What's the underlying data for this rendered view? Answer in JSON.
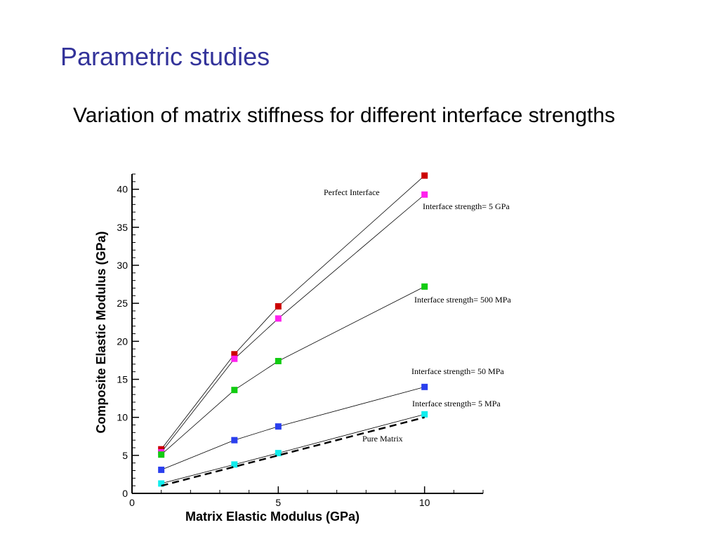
{
  "slide": {
    "title": "Parametric studies",
    "subtitle": "Variation of matrix stiffness for different interface strengths"
  },
  "chart_data": {
    "type": "scatter",
    "title": "",
    "xlabel": "Matrix Elastic Modulus (GPa)",
    "ylabel": "Composite Elastic Modulus (GPa)",
    "xlim": [
      0,
      12
    ],
    "ylim": [
      0,
      42
    ],
    "xticks": [
      0,
      5,
      10
    ],
    "yticks": [
      0,
      5,
      10,
      15,
      20,
      25,
      30,
      35,
      40
    ],
    "grid": false,
    "series": [
      {
        "name": "Perfect Interface",
        "color": "#cc0000",
        "marker": "square",
        "line": "solid-thin",
        "x": [
          1,
          3.5,
          5,
          10
        ],
        "y": [
          5.8,
          18.3,
          24.6,
          41.8
        ]
      },
      {
        "name": "Interface strength= 5 GPa",
        "color": "#ff22ee",
        "marker": "square",
        "line": "solid-thin",
        "x": [
          1,
          3.5,
          5,
          10
        ],
        "y": [
          5.4,
          17.7,
          23.0,
          39.3
        ]
      },
      {
        "name": "Interface strength= 500 MPa",
        "color": "#11cc11",
        "marker": "square",
        "line": "solid-thin",
        "x": [
          1,
          3.5,
          5,
          10
        ],
        "y": [
          5.1,
          13.6,
          17.4,
          27.2
        ]
      },
      {
        "name": "Interface strength= 50 MPa",
        "color": "#2a3fee",
        "marker": "square",
        "line": "solid-thin",
        "x": [
          1,
          3.5,
          5,
          10
        ],
        "y": [
          3.1,
          7.0,
          8.8,
          14.0
        ]
      },
      {
        "name": "Interface strength= 5 MPa",
        "color": "#11eeee",
        "marker": "square",
        "line": "solid-thin",
        "x": [
          1,
          3.5,
          5,
          10
        ],
        "y": [
          1.3,
          3.8,
          5.3,
          10.4
        ]
      },
      {
        "name": "Pure Matrix",
        "color": "#000000",
        "marker": "none",
        "line": "dashed-thick",
        "x": [
          1,
          10
        ],
        "y": [
          1,
          10
        ]
      }
    ]
  }
}
